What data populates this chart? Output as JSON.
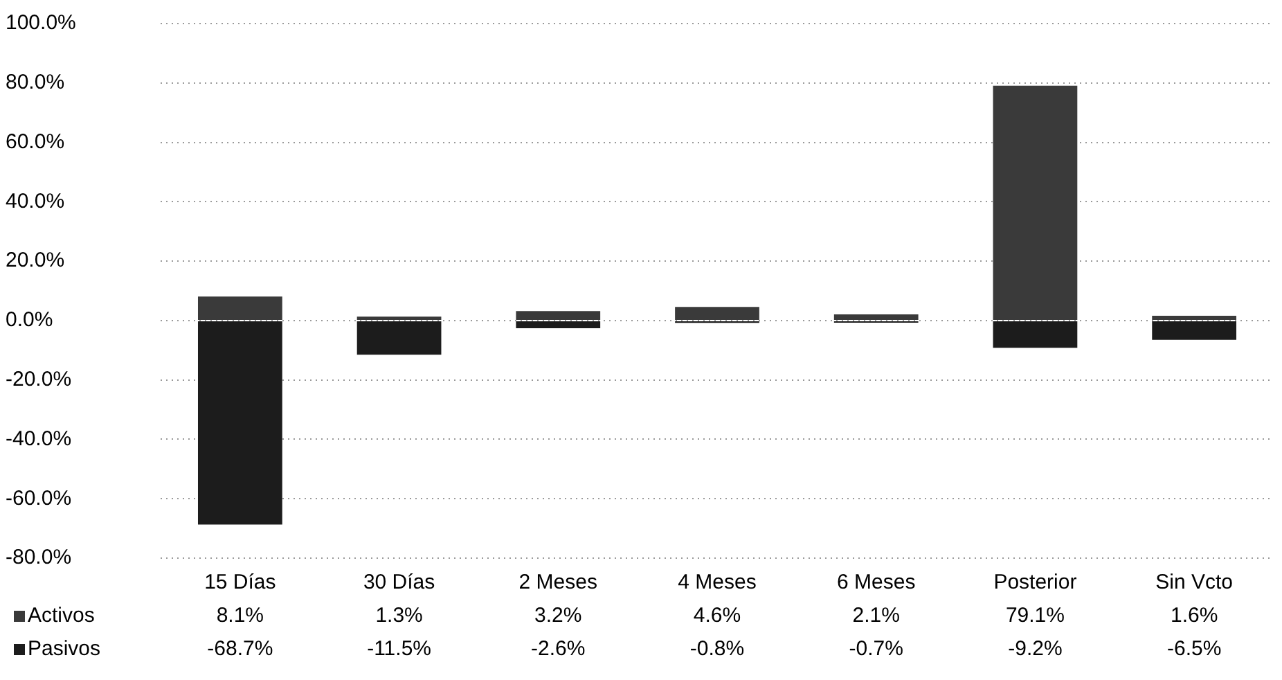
{
  "chart_data": {
    "type": "bar",
    "stacked": true,
    "categories": [
      "15 Días",
      "30 Días",
      "2 Meses",
      "4 Meses",
      "6 Meses",
      "Posterior",
      "Sin Vcto"
    ],
    "series": [
      {
        "name": "Activos",
        "color": "#3a3a3a",
        "values": [
          8.1,
          1.3,
          3.2,
          4.6,
          2.1,
          79.1,
          1.6
        ],
        "value_labels": [
          "8.1%",
          "1.3%",
          "3.2%",
          "4.6%",
          "2.1%",
          "79.1%",
          "1.6%"
        ]
      },
      {
        "name": "Pasivos",
        "color": "#1c1c1c",
        "values": [
          -68.7,
          -11.5,
          -2.6,
          -0.8,
          -0.7,
          -9.2,
          -6.5
        ],
        "value_labels": [
          "-68.7%",
          "-11.5%",
          "-2.6%",
          "-0.8%",
          "-0.7%",
          "-9.2%",
          "-6.5%"
        ]
      }
    ],
    "ylim": [
      -80,
      100
    ],
    "yticks": [
      {
        "value": -80,
        "label": "-80.0%"
      },
      {
        "value": -60,
        "label": "-60.0%"
      },
      {
        "value": -40,
        "label": "-40.0%"
      },
      {
        "value": -20,
        "label": "-20.0%"
      },
      {
        "value": 0,
        "label": "0.0%"
      },
      {
        "value": 20,
        "label": "20.0%"
      },
      {
        "value": 40,
        "label": "40.0%"
      },
      {
        "value": 60,
        "label": "60.0%"
      },
      {
        "value": 80,
        "label": "80.0%"
      },
      {
        "value": 100,
        "label": "100.0%"
      }
    ],
    "grid": "y",
    "legend": "bottom left"
  }
}
